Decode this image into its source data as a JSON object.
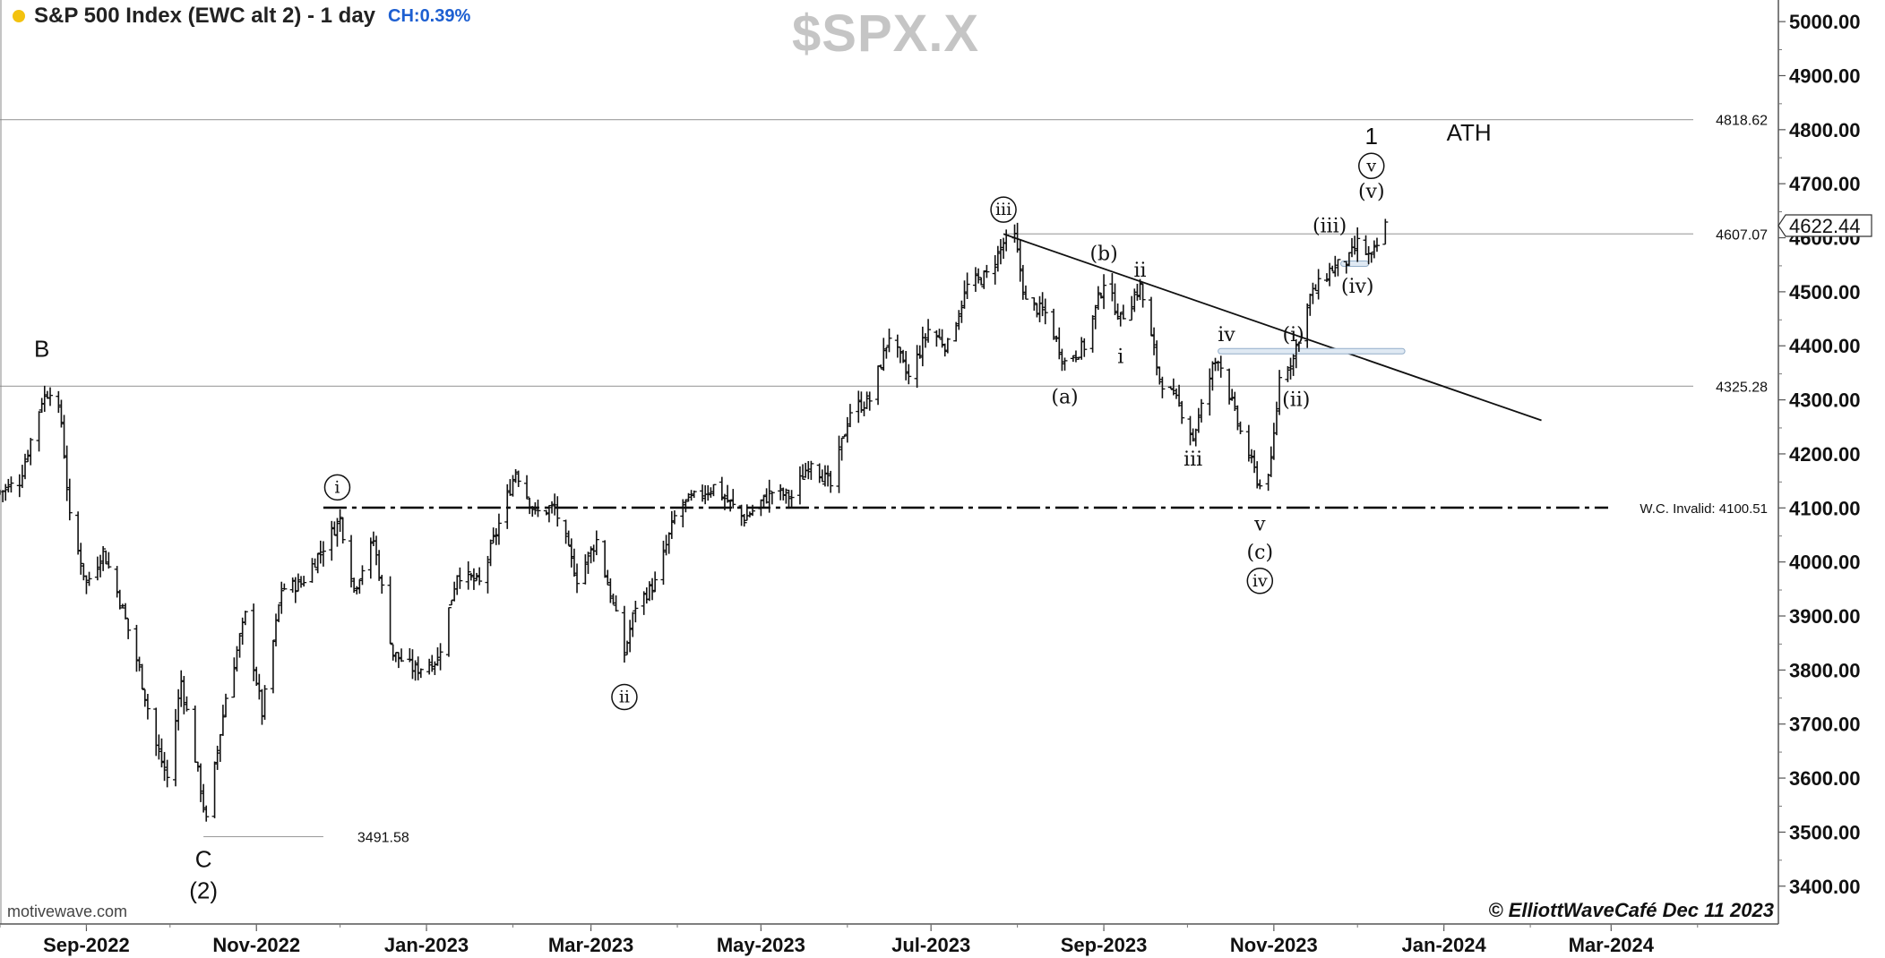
{
  "header": {
    "title": "S&P 500 Index (EWC alt 2) - 1 day",
    "change": "CH:0.39%",
    "symbol": "$SPX.X",
    "status_color": "#f3c20f"
  },
  "footer": {
    "credit": "motivewave.com",
    "copyright": "© ElliottWaveCafé Dec 11 2023"
  },
  "chart_data": {
    "type": "bar",
    "subtype": "ohlc",
    "ylim": [
      3330,
      5040
    ],
    "y_ticks": [
      3400,
      3500,
      3600,
      3700,
      3800,
      3900,
      4000,
      4100,
      4200,
      4300,
      4400,
      4500,
      4600,
      4700,
      4800,
      4900,
      5000
    ],
    "y_tick_labels": [
      "3400.00",
      "3500.00",
      "3600.00",
      "3700.00",
      "3800.00",
      "3900.00",
      "4000.00",
      "4100.00",
      "4200.00",
      "4300.00",
      "4400.00",
      "4500.00",
      "4600.00",
      "4700.00",
      "4800.00",
      "4900.00",
      "5000.00"
    ],
    "x_ticks": [
      {
        "label": "Sep-2022",
        "date": "2022-09-01"
      },
      {
        "label": "Nov-2022",
        "date": "2022-11-01"
      },
      {
        "label": "Jan-2023",
        "date": "2023-01-01"
      },
      {
        "label": "Mar-2023",
        "date": "2023-03-01"
      },
      {
        "label": "May-2023",
        "date": "2023-05-01"
      },
      {
        "label": "Jul-2023",
        "date": "2023-07-01"
      },
      {
        "label": "Sep-2023",
        "date": "2023-09-01"
      },
      {
        "label": "Nov-2023",
        "date": "2023-11-01"
      },
      {
        "label": "Jan-2024",
        "date": "2024-01-01"
      },
      {
        "label": "Mar-2024",
        "date": "2024-03-01"
      }
    ],
    "x_range": [
      "2022-08-01",
      "2024-04-30"
    ],
    "path_points": [
      [
        "2022-08-01",
        4130
      ],
      [
        "2022-08-08",
        4150
      ],
      [
        "2022-08-16",
        4300
      ],
      [
        "2022-08-19",
        4320
      ],
      [
        "2022-08-23",
        4260
      ],
      [
        "2022-08-26",
        4080
      ],
      [
        "2022-09-01",
        3960
      ],
      [
        "2022-09-07",
        4020
      ],
      [
        "2022-09-13",
        3930
      ],
      [
        "2022-09-20",
        3800
      ],
      [
        "2022-09-26",
        3660
      ],
      [
        "2022-09-30",
        3600
      ],
      [
        "2022-10-05",
        3780
      ],
      [
        "2022-10-12",
        3580
      ],
      [
        "2022-10-14",
        3520
      ],
      [
        "2022-10-21",
        3750
      ],
      [
        "2022-10-28",
        3900
      ],
      [
        "2022-11-03",
        3720
      ],
      [
        "2022-11-10",
        3950
      ],
      [
        "2022-11-17",
        3960
      ],
      [
        "2022-11-24",
        4020
      ],
      [
        "2022-12-01",
        4080
      ],
      [
        "2022-12-06",
        3950
      ],
      [
        "2022-12-13",
        4040
      ],
      [
        "2022-12-20",
        3830
      ],
      [
        "2022-12-28",
        3800
      ],
      [
        "2023-01-05",
        3820
      ],
      [
        "2023-01-12",
        3980
      ],
      [
        "2023-01-20",
        3960
      ],
      [
        "2023-01-27",
        4070
      ],
      [
        "2023-02-02",
        4170
      ],
      [
        "2023-02-09",
        4090
      ],
      [
        "2023-02-16",
        4100
      ],
      [
        "2023-02-24",
        3970
      ],
      [
        "2023-03-03",
        4040
      ],
      [
        "2023-03-09",
        3920
      ],
      [
        "2023-03-13",
        3830
      ],
      [
        "2023-03-17",
        3920
      ],
      [
        "2023-03-24",
        3960
      ],
      [
        "2023-04-01",
        4100
      ],
      [
        "2023-04-14",
        4140
      ],
      [
        "2023-04-25",
        4080
      ],
      [
        "2023-05-05",
        4130
      ],
      [
        "2023-05-12",
        4120
      ],
      [
        "2023-05-19",
        4190
      ],
      [
        "2023-05-26",
        4140
      ],
      [
        "2023-06-02",
        4280
      ],
      [
        "2023-06-09",
        4300
      ],
      [
        "2023-06-16",
        4420
      ],
      [
        "2023-06-23",
        4340
      ],
      [
        "2023-06-30",
        4430
      ],
      [
        "2023-07-07",
        4400
      ],
      [
        "2023-07-14",
        4510
      ],
      [
        "2023-07-21",
        4530
      ],
      [
        "2023-07-27",
        4590
      ],
      [
        "2023-07-31",
        4600
      ],
      [
        "2023-08-04",
        4480
      ],
      [
        "2023-08-11",
        4460
      ],
      [
        "2023-08-18",
        4370
      ],
      [
        "2023-08-25",
        4400
      ],
      [
        "2023-09-01",
        4520
      ],
      [
        "2023-09-07",
        4450
      ],
      [
        "2023-09-14",
        4510
      ],
      [
        "2023-09-21",
        4340
      ],
      [
        "2023-09-28",
        4290
      ],
      [
        "2023-10-03",
        4230
      ],
      [
        "2023-10-10",
        4360
      ],
      [
        "2023-10-12",
        4380
      ],
      [
        "2023-10-20",
        4240
      ],
      [
        "2023-10-27",
        4140
      ],
      [
        "2023-10-31",
        4180
      ],
      [
        "2023-11-03",
        4340
      ],
      [
        "2023-11-08",
        4380
      ],
      [
        "2023-11-14",
        4490
      ],
      [
        "2023-11-21",
        4540
      ],
      [
        "2023-11-28",
        4560
      ],
      [
        "2023-12-01",
        4590
      ],
      [
        "2023-12-06",
        4560
      ],
      [
        "2023-12-11",
        4622
      ]
    ],
    "last_price": "4622.44",
    "horizontal_levels": [
      {
        "label": "4818.62",
        "value": 4818.62,
        "style": "solid",
        "start": "2022-08-01"
      },
      {
        "label": "4607.07",
        "value": 4607.07,
        "style": "solid",
        "start": "2023-07-27"
      },
      {
        "label": "4325.28",
        "value": 4325.28,
        "style": "solid",
        "start": "2022-08-01"
      },
      {
        "label": "W.C. Invalid: 4100.51",
        "value": 4100.51,
        "style": "dashdot",
        "start": "2022-11-25"
      },
      {
        "label": "3491.58",
        "value": 3491.58,
        "style": "solid",
        "start": "2022-10-13",
        "end": "2022-11-25"
      }
    ],
    "trendline": {
      "from": [
        "2023-07-27",
        4607
      ],
      "to": [
        "2024-02-05",
        4262
      ]
    },
    "wave_labels": [
      {
        "text": "B",
        "date": "2022-08-16",
        "price": 4395,
        "style": "sans"
      },
      {
        "text": "C",
        "date": "2022-10-13",
        "price": 3450,
        "style": "sans"
      },
      {
        "text": "(2)",
        "date": "2022-10-13",
        "price": 3392,
        "style": "sans"
      },
      {
        "text": "i",
        "date": "2022-11-30",
        "price": 4138,
        "style": "circle"
      },
      {
        "text": "ii",
        "date": "2023-03-13",
        "price": 3750,
        "style": "circle"
      },
      {
        "text": "iii",
        "date": "2023-07-27",
        "price": 4652,
        "style": "circle"
      },
      {
        "text": "(a)",
        "date": "2023-08-18",
        "price": 4305,
        "style": "serif"
      },
      {
        "text": "(b)",
        "date": "2023-09-01",
        "price": 4570,
        "style": "serif"
      },
      {
        "text": "ii",
        "date": "2023-09-14",
        "price": 4540,
        "style": "serif"
      },
      {
        "text": "i",
        "date": "2023-09-07",
        "price": 4380,
        "style": "serif"
      },
      {
        "text": "iv",
        "date": "2023-10-15",
        "price": 4420,
        "style": "serif"
      },
      {
        "text": "iii",
        "date": "2023-10-03",
        "price": 4190,
        "style": "serif"
      },
      {
        "text": "v",
        "date": "2023-10-27",
        "price": 4070,
        "style": "serif"
      },
      {
        "text": "(c)",
        "date": "2023-10-27",
        "price": 4018,
        "style": "serif"
      },
      {
        "text": "iv",
        "date": "2023-10-27",
        "price": 3965,
        "style": "circle"
      },
      {
        "text": "(i)",
        "date": "2023-11-08",
        "price": 4420,
        "style": "serif"
      },
      {
        "text": "(ii)",
        "date": "2023-11-09",
        "price": 4300,
        "style": "serif"
      },
      {
        "text": "(iii)",
        "date": "2023-11-21",
        "price": 4622,
        "style": "serif"
      },
      {
        "text": "(iv)",
        "date": "2023-12-01",
        "price": 4510,
        "style": "serif"
      },
      {
        "text": "(v)",
        "date": "2023-12-06",
        "price": 4685,
        "style": "serif"
      },
      {
        "text": "v",
        "date": "2023-12-06",
        "price": 4733,
        "style": "circle"
      },
      {
        "text": "1",
        "date": "2023-12-06",
        "price": 4788,
        "style": "sans"
      },
      {
        "text": "ATH",
        "date": "2024-01-10",
        "price": 4795,
        "style": "sans"
      }
    ],
    "zones": [
      {
        "from": "2023-10-12",
        "to": "2023-12-18",
        "price": 4390
      },
      {
        "from": "2023-11-25",
        "to": "2023-12-05",
        "price": 4552
      }
    ]
  }
}
